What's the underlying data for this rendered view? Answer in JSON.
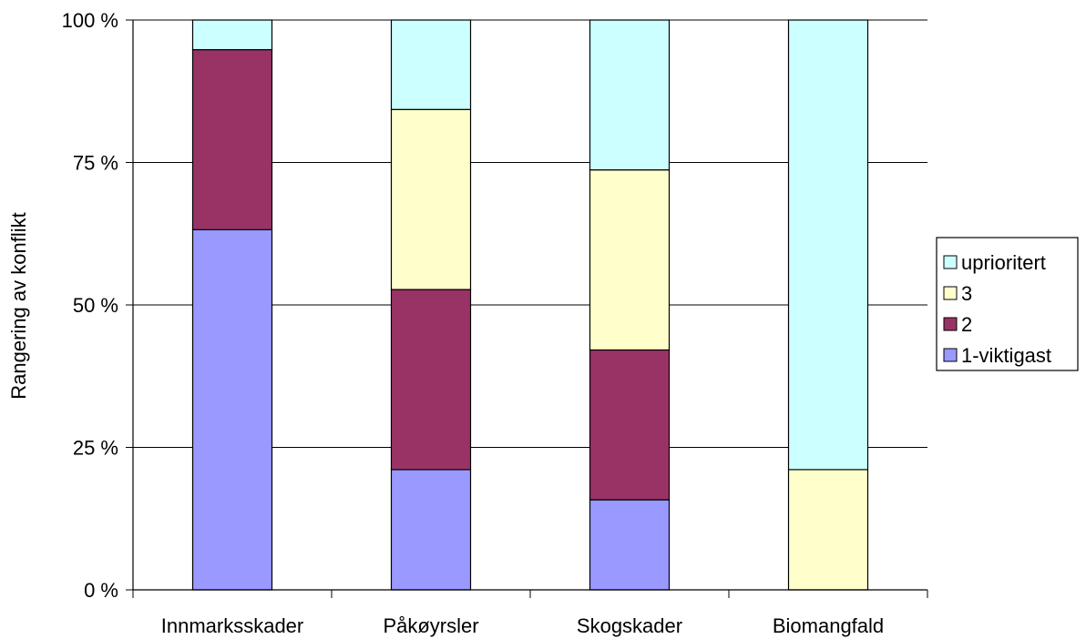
{
  "chart_data": {
    "type": "bar",
    "stacked": "percent",
    "categories": [
      "Innmarksskader",
      "Påkøyrsler",
      "Skogskader",
      "Biomangfald"
    ],
    "series": [
      {
        "name": "1-viktigast",
        "color": "#9999ff",
        "values": [
          63.2,
          21.1,
          15.8,
          0
        ]
      },
      {
        "name": "2",
        "color": "#993366",
        "values": [
          31.6,
          31.6,
          26.3,
          0
        ]
      },
      {
        "name": "3",
        "color": "#ffffcc",
        "values": [
          0,
          31.6,
          31.6,
          21.1
        ]
      },
      {
        "name": "uprioritert",
        "color": "#ccffff",
        "values": [
          5.2,
          15.7,
          26.3,
          78.9
        ]
      }
    ],
    "title": "",
    "xlabel": "",
    "ylabel": "Rangering av konflikt",
    "ylim": [
      0,
      100
    ],
    "yticks": [
      0,
      25,
      50,
      75,
      100
    ],
    "ytick_labels": [
      "0 %",
      "25 %",
      "50 %",
      "75 %",
      "100 %"
    ],
    "grid": true,
    "legend_position": "right",
    "legend_order": [
      "uprioritert",
      "3",
      "2",
      "1-viktigast"
    ]
  }
}
